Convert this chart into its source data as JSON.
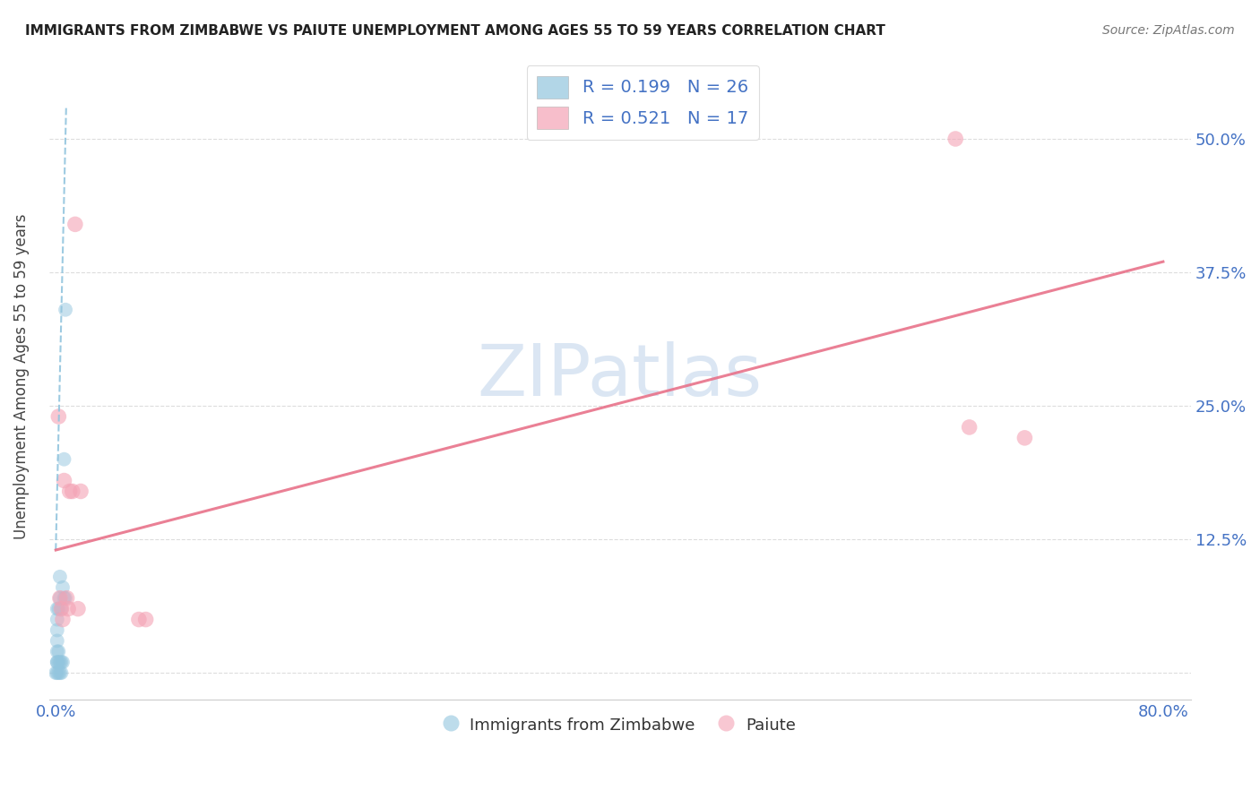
{
  "title": "IMMIGRANTS FROM ZIMBABWE VS PAIUTE UNEMPLOYMENT AMONG AGES 55 TO 59 YEARS CORRELATION CHART",
  "source": "Source: ZipAtlas.com",
  "ylabel_label": "Unemployment Among Ages 55 to 59 years",
  "xlim": [
    -0.005,
    0.82
  ],
  "ylim": [
    -0.025,
    0.58
  ],
  "legend_r1": "R = 0.199",
  "legend_n1": "N = 26",
  "legend_r2": "R = 0.521",
  "legend_n2": "N = 17",
  "color_blue": "#92c5de",
  "color_pink": "#f4a3b5",
  "color_blue_line": "#92c5de",
  "color_pink_line": "#e8728a",
  "color_title": "#222222",
  "color_source": "#777777",
  "color_tick_labels": "#4472c4",
  "watermark_zip": "ZIP",
  "watermark_atlas": "atlas",
  "grid_color": "#dddddd",
  "x_ticks": [
    0.0,
    0.1,
    0.2,
    0.3,
    0.4,
    0.5,
    0.6,
    0.7,
    0.8
  ],
  "y_ticks": [
    0.0,
    0.125,
    0.25,
    0.375,
    0.5
  ],
  "blue_scatter_x": [
    0.0,
    0.001,
    0.001,
    0.001,
    0.001,
    0.001,
    0.001,
    0.001,
    0.001,
    0.002,
    0.002,
    0.002,
    0.002,
    0.003,
    0.003,
    0.003,
    0.003,
    0.004,
    0.004,
    0.004,
    0.005,
    0.005,
    0.006,
    0.006,
    0.007,
    0.007
  ],
  "blue_scatter_y": [
    0.0,
    0.0,
    0.01,
    0.01,
    0.02,
    0.03,
    0.04,
    0.05,
    0.06,
    0.0,
    0.01,
    0.02,
    0.06,
    0.0,
    0.01,
    0.07,
    0.09,
    0.0,
    0.01,
    0.06,
    0.01,
    0.08,
    0.07,
    0.2,
    0.07,
    0.34
  ],
  "pink_scatter_x": [
    0.002,
    0.003,
    0.004,
    0.005,
    0.006,
    0.008,
    0.009,
    0.01,
    0.012,
    0.014,
    0.016,
    0.018,
    0.06,
    0.065,
    0.65,
    0.66,
    0.7
  ],
  "pink_scatter_y": [
    0.24,
    0.07,
    0.06,
    0.05,
    0.18,
    0.07,
    0.06,
    0.17,
    0.17,
    0.42,
    0.06,
    0.17,
    0.05,
    0.05,
    0.5,
    0.23,
    0.22
  ],
  "blue_line_x0": 0.0,
  "blue_line_x1": 0.0075,
  "blue_line_y0": 0.115,
  "blue_line_y1": 0.53,
  "pink_line_x0": 0.0,
  "pink_line_x1": 0.8,
  "pink_line_y0": 0.115,
  "pink_line_y1": 0.385
}
